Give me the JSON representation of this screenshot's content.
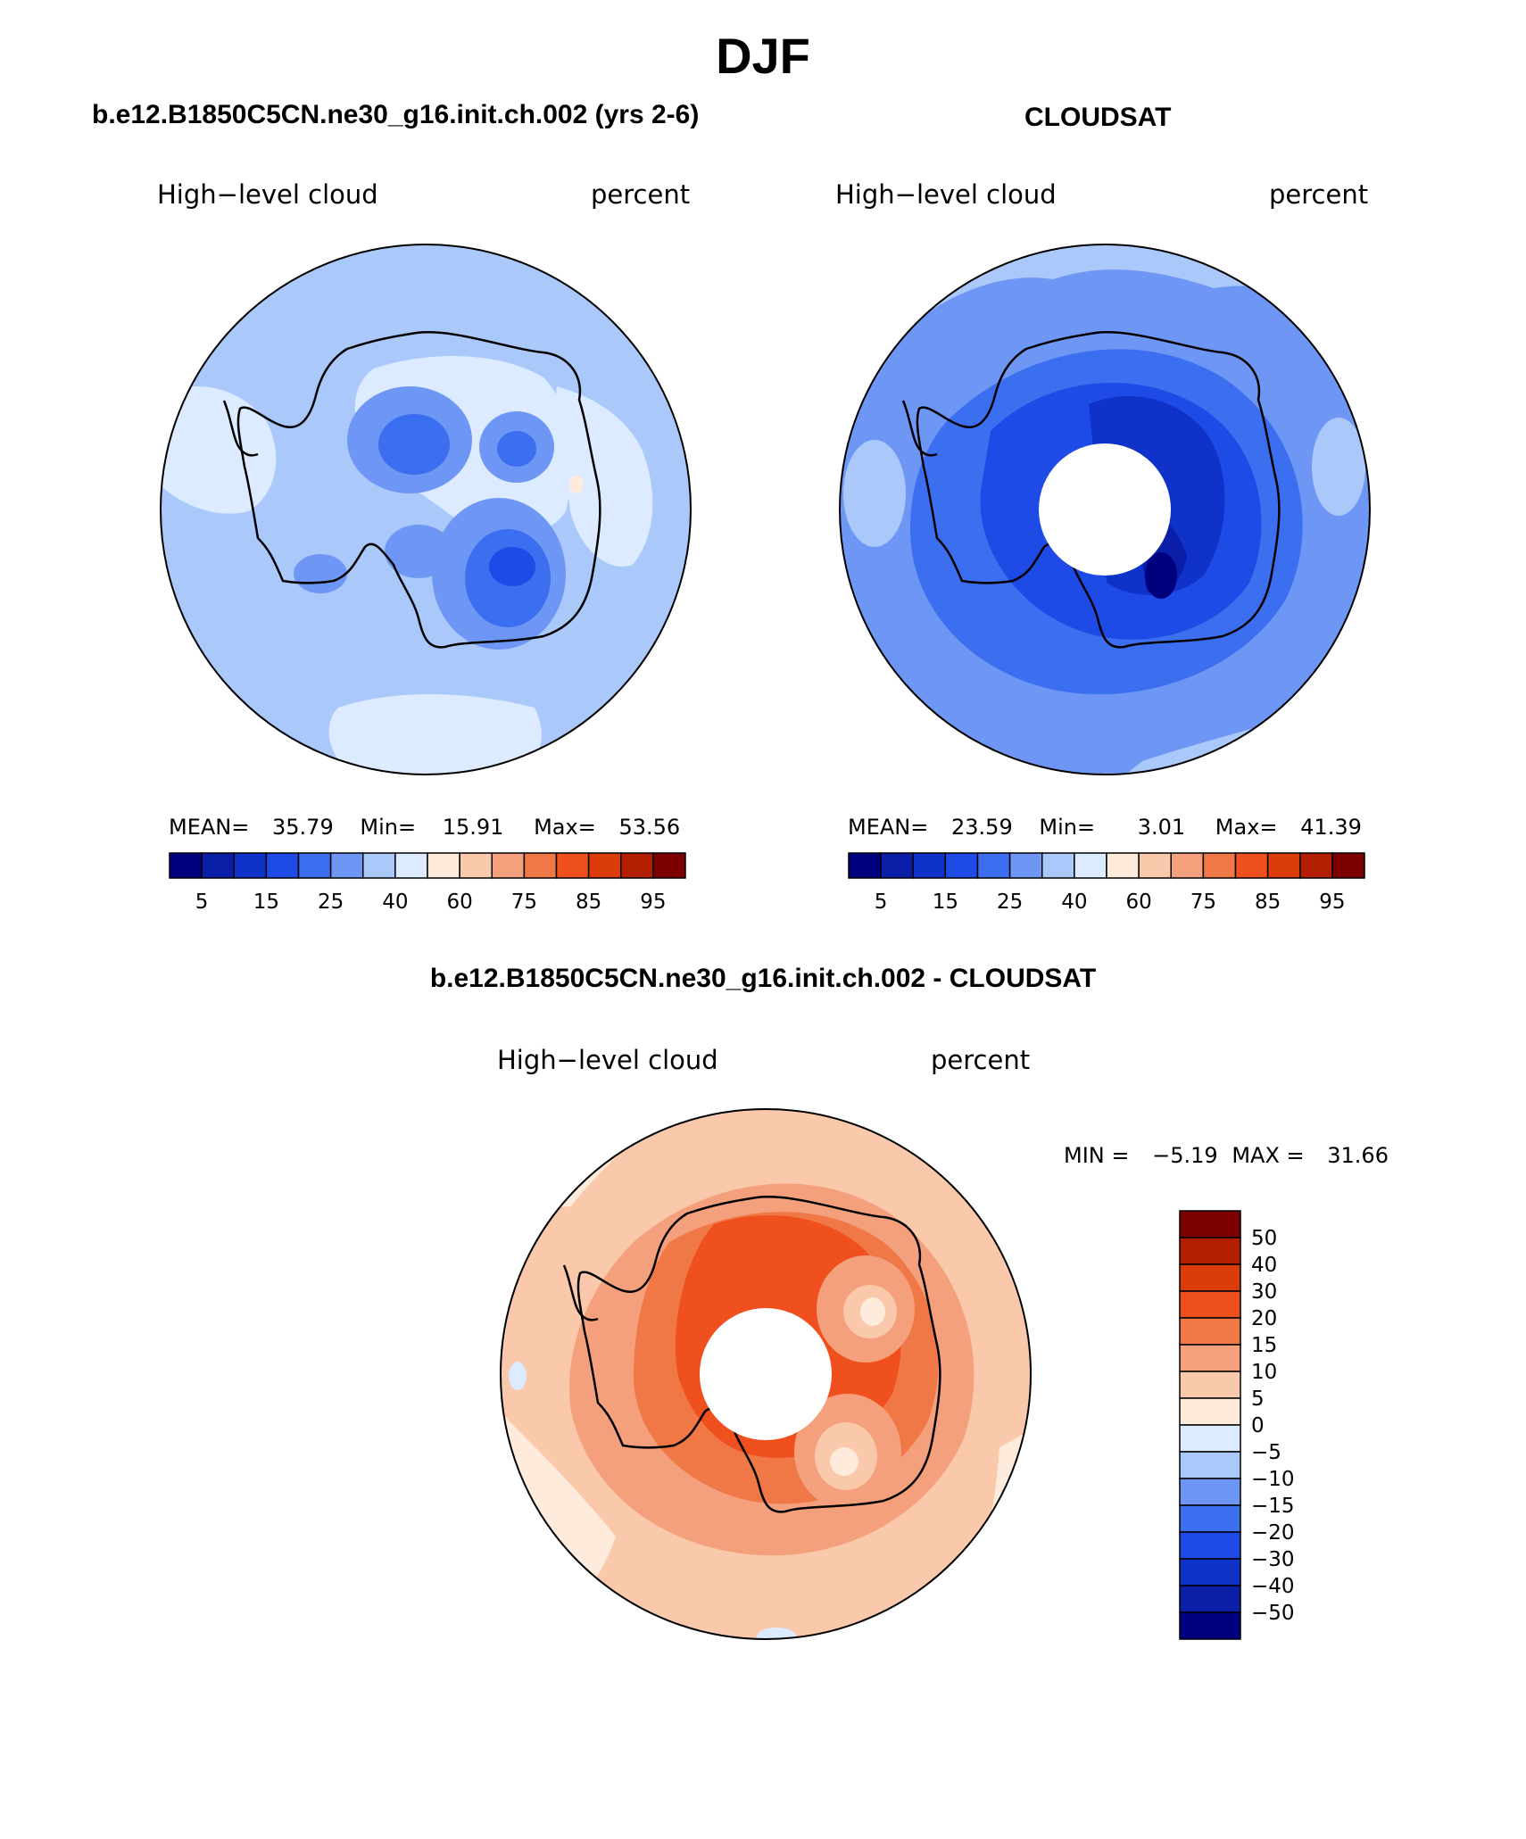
{
  "title": "DJF",
  "panels": {
    "model": {
      "case_title": "b.e12.B1850C5CN.ne30_g16.init.ch.002 (yrs 2-6)",
      "variable": "High−level cloud",
      "units": "percent",
      "stats": {
        "mean_label": "MEAN=",
        "mean": "35.79",
        "min_label": "Min=",
        "min": "15.91",
        "max_label": "Max=",
        "max": "53.56"
      }
    },
    "obs": {
      "case_title": "CLOUDSAT",
      "variable": "High−level cloud",
      "units": "percent",
      "stats": {
        "mean_label": "MEAN=",
        "mean": "23.59",
        "min_label": "Min=",
        "min": "3.01",
        "max_label": "Max=",
        "max": "41.39"
      }
    },
    "diff": {
      "case_title": "b.e12.B1850C5CN.ne30_g16.init.ch.002 - CLOUDSAT",
      "variable": "High−level cloud",
      "units": "percent",
      "stats": {
        "min_label": "MIN =",
        "min": "−5.19",
        "max_label": "MAX =",
        "max": "31.66"
      }
    }
  },
  "absolute_colorbar": {
    "colors": [
      "#00007f",
      "#0a1ea8",
      "#0f32c8",
      "#1e4be6",
      "#3c6ef0",
      "#6e96f5",
      "#aac8fa",
      "#dcebff",
      "#ffebdc",
      "#fac8aa",
      "#f5a07d",
      "#f07846",
      "#f0501e",
      "#dc3c0a",
      "#b41e00",
      "#7d0000"
    ],
    "tick_labels": [
      "5",
      "15",
      "25",
      "40",
      "60",
      "75",
      "85",
      "95"
    ]
  },
  "difference_colorbar": {
    "colors_top_to_bottom": [
      "#7d0000",
      "#b41e00",
      "#dc3c0a",
      "#f0501e",
      "#f07846",
      "#f5a07d",
      "#fac8aa",
      "#ffebdc",
      "#dcebff",
      "#aac8fa",
      "#6e96f5",
      "#3c6ef0",
      "#1e4be6",
      "#0f32c8",
      "#0a1ea8",
      "#00007f"
    ],
    "tick_labels": [
      "50",
      "40",
      "30",
      "20",
      "15",
      "10",
      "5",
      "0",
      "−5",
      "−10",
      "−15",
      "−20",
      "−30",
      "−40",
      "−50"
    ]
  }
}
